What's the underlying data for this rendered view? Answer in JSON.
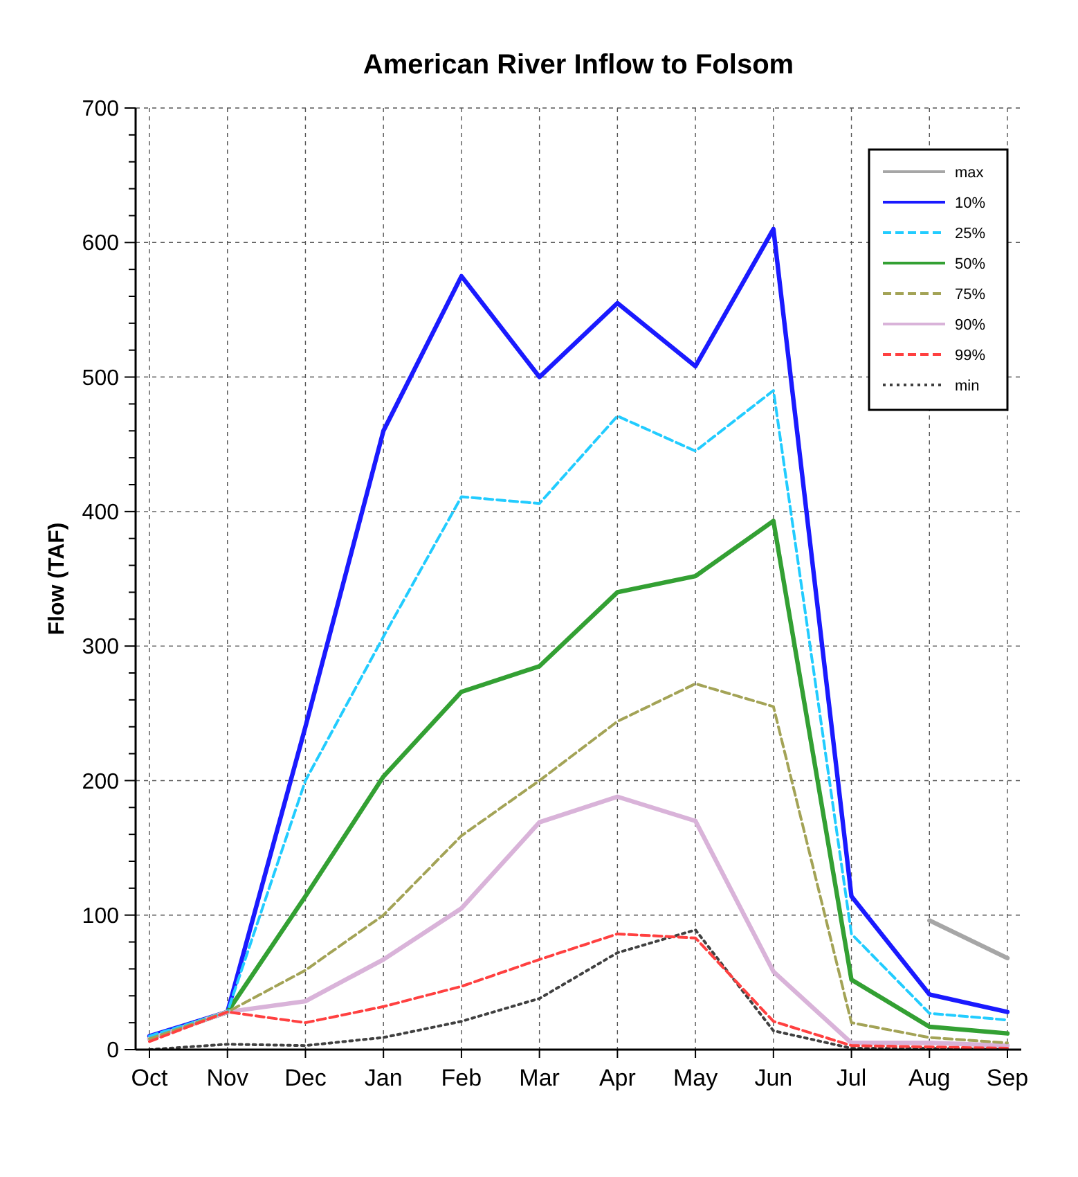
{
  "chart_data": {
    "type": "line",
    "title": "American River Inflow to Folsom",
    "ylabel": "Flow (TAF)",
    "categories": [
      "Oct",
      "Nov",
      "Dec",
      "Jan",
      "Feb",
      "Mar",
      "Apr",
      "May",
      "Jun",
      "Jul",
      "Aug",
      "Sep"
    ],
    "ylim": [
      0,
      700
    ],
    "yticks": [
      0,
      {
        "value": 20,
        "label": null
      },
      {
        "value": 40,
        "label": null
      },
      {
        "value": 60,
        "label": null
      },
      {
        "value": 80,
        "label": null
      },
      100,
      {
        "value": 120,
        "label": null
      },
      {
        "value": 140,
        "label": null
      },
      {
        "value": 160,
        "label": null
      },
      {
        "value": 180,
        "label": null
      },
      200,
      {
        "value": 220,
        "label": null
      },
      {
        "value": 240,
        "label": null
      },
      {
        "value": 260,
        "label": null
      },
      {
        "value": 280,
        "label": null
      },
      300,
      {
        "value": 320,
        "label": null
      },
      {
        "value": 340,
        "label": null
      },
      {
        "value": 360,
        "label": null
      },
      {
        "value": 380,
        "label": null
      },
      400,
      {
        "value": 420,
        "label": null
      },
      {
        "value": 440,
        "label": null
      },
      {
        "value": 460,
        "label": null
      },
      {
        "value": 480,
        "label": null
      },
      500,
      {
        "value": 520,
        "label": null
      },
      {
        "value": 540,
        "label": null
      },
      {
        "value": 560,
        "label": null
      },
      {
        "value": 580,
        "label": null
      },
      600,
      {
        "value": 620,
        "label": null
      },
      {
        "value": 640,
        "label": null
      },
      {
        "value": 660,
        "label": null
      },
      {
        "value": 680,
        "label": null
      },
      700
    ],
    "grid": true,
    "legend": "top right",
    "marker": "none",
    "series": [
      {
        "name": "max",
        "color": "#a6a6a6",
        "line_style": "solid",
        "values": [
          null,
          null,
          null,
          null,
          null,
          null,
          null,
          null,
          null,
          null,
          96,
          68
        ]
      },
      {
        "name": "10%",
        "color": "#1a1aff",
        "line_style": "solid",
        "values": [
          10,
          28,
          240,
          460,
          575,
          500,
          555,
          508,
          610,
          114,
          41,
          28
        ]
      },
      {
        "name": "25%",
        "color": "#22ccff",
        "line_style": "dashed",
        "values": [
          10,
          28,
          200,
          307,
          411,
          406,
          471,
          445,
          490,
          86,
          27,
          22
        ]
      },
      {
        "name": "50%",
        "color": "#33a033",
        "line_style": "solid",
        "values": [
          8,
          28,
          114,
          203,
          266,
          285,
          340,
          352,
          393,
          52,
          17,
          12
        ]
      },
      {
        "name": "75%",
        "color": "#a3a356",
        "line_style": "dashed",
        "values": [
          8,
          28,
          59,
          100,
          159,
          200,
          244,
          272,
          255,
          20,
          9,
          5
        ]
      },
      {
        "name": "90%",
        "color": "#d9b3d9",
        "line_style": "solid",
        "values": [
          8,
          28,
          36,
          67,
          105,
          169,
          188,
          170,
          58,
          5,
          5,
          3
        ]
      },
      {
        "name": "99%",
        "color": "#ff4040",
        "line_style": "dashed",
        "values": [
          6,
          28,
          20,
          32,
          47,
          67,
          86,
          83,
          21,
          3,
          2,
          1
        ]
      },
      {
        "name": "min",
        "color": "#404040",
        "line_style": "dotted",
        "values": [
          0,
          4,
          3,
          9,
          21,
          38,
          72,
          89,
          14,
          1,
          1,
          0
        ]
      }
    ]
  }
}
